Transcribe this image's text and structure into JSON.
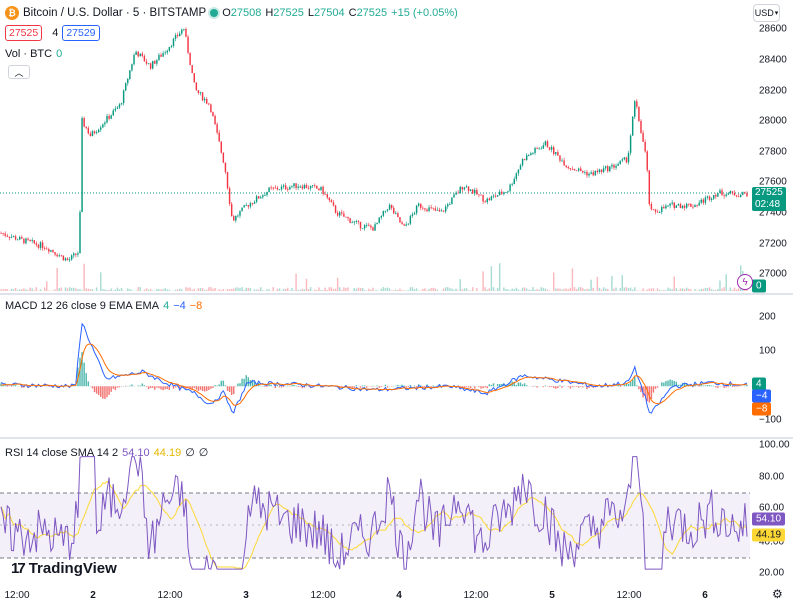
{
  "header": {
    "symbol_title": "Bitcoin / U.S. Dollar · 5 · BITSTAMP",
    "ohlc": [
      {
        "k": "O",
        "v": "27508"
      },
      {
        "k": "H",
        "v": "27525"
      },
      {
        "k": "L",
        "v": "27504"
      },
      {
        "k": "C",
        "v": "27525"
      }
    ],
    "change": "+15 (+0.05%)",
    "bid": "27525",
    "spread": "4",
    "ask": "27529",
    "volume_label": "Vol · BTC",
    "volume_value": "0",
    "currency": "USD"
  },
  "macd": {
    "label": "MACD 12 26 close 9 EMA EMA",
    "v1": "4",
    "v2": "−4",
    "v3": "−8"
  },
  "rsi": {
    "label": "RSI 14 close SMA 14 2",
    "v1": "54.10",
    "v2": "44.19",
    "v3": "∅",
    "v4": "∅"
  },
  "price_axis": [
    "28600",
    "28400",
    "28200",
    "28000",
    "27800",
    "27600",
    "27400",
    "27200",
    "27000"
  ],
  "macd_axis": [
    "200",
    "100",
    "−100"
  ],
  "rsi_axis": [
    "100.00",
    "80.00",
    "60.00",
    "40.00",
    "20.00"
  ],
  "time_axis": [
    "12:00",
    "2",
    "12:00",
    "3",
    "12:00",
    "4",
    "12:00",
    "5",
    "12:00",
    "6"
  ],
  "current_price": {
    "price": "27525",
    "countdown": "02:48"
  },
  "volume_tag": "0",
  "macd_tags": [
    "4",
    "−4",
    "−8"
  ],
  "rsi_tags": [
    "54.10",
    "44.19"
  ],
  "colors": {
    "up": "#089981",
    "down": "#f23645",
    "macd_line": "#2962ff",
    "signal_line": "#ff6d00",
    "rsi_line": "#7e57c2",
    "rsi_sma": "#fdd835"
  },
  "icons": {
    "collapse": "chevron-up-icon",
    "lightning": "lightning-icon",
    "settings": "gear-icon"
  },
  "branding": "TradingView",
  "chart_data": {
    "type": "candlestick",
    "price_range": [
      26900,
      28650
    ],
    "price_path": [
      [
        0,
        27270
      ],
      [
        0.03,
        27220
      ],
      [
        0.06,
        27180
      ],
      [
        0.09,
        27090
      ],
      [
        0.105,
        27150
      ],
      [
        0.108,
        28000
      ],
      [
        0.12,
        27900
      ],
      [
        0.14,
        28000
      ],
      [
        0.16,
        28100
      ],
      [
        0.18,
        28450
      ],
      [
        0.2,
        28350
      ],
      [
        0.22,
        28450
      ],
      [
        0.245,
        28600
      ],
      [
        0.26,
        28200
      ],
      [
        0.28,
        28100
      ],
      [
        0.3,
        27700
      ],
      [
        0.31,
        27350
      ],
      [
        0.33,
        27450
      ],
      [
        0.36,
        27550
      ],
      [
        0.4,
        27580
      ],
      [
        0.43,
        27550
      ],
      [
        0.45,
        27400
      ],
      [
        0.48,
        27320
      ],
      [
        0.5,
        27300
      ],
      [
        0.52,
        27450
      ],
      [
        0.54,
        27300
      ],
      [
        0.56,
        27450
      ],
      [
        0.59,
        27400
      ],
      [
        0.62,
        27580
      ],
      [
        0.65,
        27480
      ],
      [
        0.68,
        27550
      ],
      [
        0.7,
        27750
      ],
      [
        0.73,
        27850
      ],
      [
        0.76,
        27700
      ],
      [
        0.79,
        27650
      ],
      [
        0.82,
        27700
      ],
      [
        0.84,
        27750
      ],
      [
        0.85,
        28130
      ],
      [
        0.865,
        27750
      ],
      [
        0.87,
        27400
      ],
      [
        0.9,
        27450
      ],
      [
        0.93,
        27450
      ],
      [
        0.96,
        27530
      ],
      [
        0.99,
        27520
      ],
      [
        1,
        27525
      ]
    ],
    "current": 27525,
    "macd_range": [
      -130,
      240
    ],
    "macd_path": [
      [
        0,
        5
      ],
      [
        0.1,
        0
      ],
      [
        0.108,
        180
      ],
      [
        0.12,
        120
      ],
      [
        0.14,
        20
      ],
      [
        0.19,
        40
      ],
      [
        0.22,
        10
      ],
      [
        0.26,
        -20
      ],
      [
        0.28,
        -50
      ],
      [
        0.3,
        -15
      ],
      [
        0.31,
        -80
      ],
      [
        0.33,
        10
      ],
      [
        0.4,
        5
      ],
      [
        0.5,
        -10
      ],
      [
        0.6,
        0
      ],
      [
        0.65,
        -20
      ],
      [
        0.7,
        30
      ],
      [
        0.8,
        0
      ],
      [
        0.84,
        10
      ],
      [
        0.85,
        50
      ],
      [
        0.865,
        -40
      ],
      [
        0.87,
        -80
      ],
      [
        0.9,
        0
      ],
      [
        0.95,
        10
      ],
      [
        1,
        4
      ]
    ],
    "rsi_levels": [
      70,
      30
    ],
    "rsi_range": [
      15,
      102
    ]
  }
}
